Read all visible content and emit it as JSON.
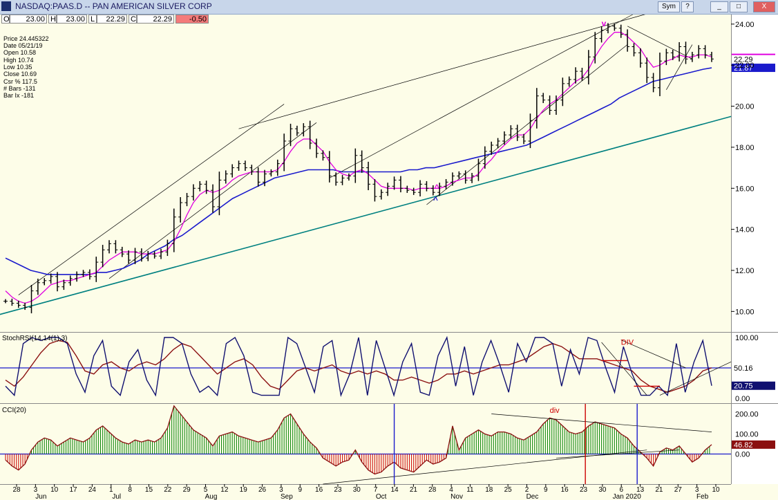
{
  "window": {
    "title": "NASDAQ:PAAS.D -- PAN AMERICAN SILVER CORP",
    "buttons": [
      "Sym",
      "?",
      "_",
      "□",
      "X"
    ]
  },
  "quote_bar": [
    {
      "label": "O",
      "value": "23.00"
    },
    {
      "label": "H",
      "value": "23.00"
    },
    {
      "label": "L",
      "value": "22.29"
    },
    {
      "label": "C",
      "value": "22.29"
    },
    {
      "label": "",
      "value": "-0.50"
    }
  ],
  "info_box": [
    "Price  24.445322",
    "Date  05/21/19",
    "Open  10.58",
    "High  10.74",
    "Low  10.35",
    "Close  10.69",
    "Csr %  117.5",
    "# Bars -131",
    "Bar Ix -181"
  ],
  "colors": {
    "price": "#000000",
    "ma_short": "#e000e0",
    "ma_long": "#1a1acc",
    "trend": "#008080",
    "stoch_k": "#101070",
    "stoch_d": "#8b1010",
    "cci_pos": "#008000",
    "cci_neg": "#cc0000",
    "annotation": "#cc0000"
  },
  "chart_data": [
    {
      "type": "line",
      "panel": "price",
      "title": "NASDAQ:PAAS.D -- PAN AMERICAN SILVER CORP",
      "ylim": [
        9,
        24.5
      ],
      "y_ticks": [
        "10.00",
        "12.00",
        "14.00",
        "16.00",
        "18.00",
        "20.00",
        "22.00",
        "24.00"
      ],
      "x_ticks": [
        "28",
        "3",
        "10",
        "17",
        "24",
        "1",
        "8",
        "15",
        "22",
        "29",
        "5",
        "12",
        "19",
        "26",
        "3",
        "9",
        "16",
        "23",
        "30",
        "7",
        "14",
        "21",
        "28",
        "4",
        "11",
        "18",
        "25",
        "2",
        "9",
        "16",
        "23",
        "30",
        "6",
        "13",
        "21",
        "27",
        "3",
        "10"
      ],
      "months": [
        "Jun",
        "Jul",
        "Aug",
        "Sep",
        "Oct",
        "Nov",
        "Dec",
        "Jan 2020",
        "Feb"
      ],
      "price_labels": [
        "22.29",
        "21.87"
      ],
      "annotations": [
        "v",
        "^",
        "^"
      ],
      "series": [
        {
          "name": "Close",
          "values": [
            10.5,
            10.4,
            10.3,
            10.2,
            11.0,
            11.4,
            11.5,
            11.7,
            11.2,
            11.4,
            11.6,
            11.8,
            11.9,
            11.7,
            12.4,
            13.0,
            13.3,
            13.0,
            12.8,
            12.5,
            12.9,
            12.6,
            12.8,
            12.7,
            12.9,
            13.3,
            14.6,
            15.3,
            15.6,
            16.0,
            16.2,
            15.9,
            15.1,
            16.4,
            16.7,
            17.0,
            17.2,
            17.0,
            16.8,
            16.3,
            16.7,
            16.8,
            17.2,
            18.3,
            18.9,
            18.7,
            19.0,
            18.2,
            17.7,
            17.5,
            16.6,
            16.3,
            16.5,
            16.6,
            17.6,
            17.0,
            16.2,
            15.6,
            15.8,
            16.1,
            16.4,
            16.0,
            15.9,
            15.8,
            16.2,
            16.0,
            15.8,
            16.1,
            16.3,
            16.6,
            16.7,
            16.4,
            16.6,
            17.2,
            17.8,
            18.1,
            18.3,
            18.6,
            18.9,
            18.5,
            18.3,
            19.3,
            20.5,
            20.3,
            19.8,
            20.3,
            21.1,
            21.3,
            21.7,
            21.4,
            22.4,
            23.3,
            23.7,
            23.9,
            23.8,
            23.5,
            22.9,
            22.6,
            22.1,
            21.4,
            20.9,
            22.2,
            22.6,
            22.4,
            22.9,
            22.3,
            22.5,
            22.8,
            22.5,
            22.3
          ]
        },
        {
          "name": "MA short",
          "values": [
            11.0,
            10.7,
            10.5,
            10.4,
            10.5,
            10.7,
            11.0,
            11.3,
            11.4,
            11.5,
            11.5,
            11.6,
            11.7,
            11.8,
            11.9,
            12.2,
            12.5,
            12.7,
            12.9,
            12.9,
            12.9,
            12.8,
            12.8,
            12.8,
            12.9,
            13.0,
            13.4,
            14.0,
            14.7,
            15.3,
            15.7,
            15.9,
            15.8,
            15.9,
            16.1,
            16.4,
            16.6,
            16.7,
            16.8,
            16.8,
            16.8,
            16.8,
            16.9,
            17.3,
            17.8,
            18.2,
            18.4,
            18.4,
            18.1,
            17.8,
            17.3,
            16.9,
            16.7,
            16.6,
            16.8,
            16.9,
            16.7,
            16.4,
            16.1,
            16.0,
            16.0,
            16.0,
            16.0,
            15.9,
            16.0,
            16.0,
            16.0,
            16.0,
            16.1,
            16.3,
            16.4,
            16.5,
            16.5,
            16.7,
            17.1,
            17.4,
            17.8,
            18.1,
            18.4,
            18.6,
            18.6,
            18.9,
            19.4,
            19.8,
            20.1,
            20.3,
            20.6,
            20.9,
            21.2,
            21.4,
            21.8,
            22.4,
            22.9,
            23.3,
            23.6,
            23.6,
            23.4,
            23.1,
            22.8,
            22.3,
            21.9,
            22.0,
            22.2,
            22.3,
            22.5,
            22.4,
            22.4,
            22.5,
            22.5,
            22.4
          ]
        },
        {
          "name": "MA long",
          "values": [
            12.6,
            12.4,
            12.2,
            12.0,
            11.9,
            11.8,
            11.8,
            11.8,
            11.8,
            11.8,
            11.8,
            11.9,
            11.9,
            12.0,
            12.1,
            12.3,
            12.5,
            12.8,
            13.0,
            13.2,
            13.5,
            13.7,
            14.0,
            14.3,
            14.6,
            14.9,
            15.2,
            15.5,
            15.7,
            15.9,
            16.1,
            16.3,
            16.5,
            16.6,
            16.7,
            16.8,
            16.9,
            16.9,
            16.9,
            16.9,
            16.8,
            16.8,
            16.8,
            16.8,
            16.8,
            16.8,
            16.8,
            16.8,
            16.9,
            16.9,
            17.0,
            17.0,
            17.1,
            17.2,
            17.3,
            17.4,
            17.5,
            17.6,
            17.7,
            17.8,
            17.9,
            18.0,
            18.1,
            18.3,
            18.5,
            18.7,
            18.9,
            19.1,
            19.3,
            19.5,
            19.7,
            19.9,
            20.1,
            20.4,
            20.6,
            20.8,
            21.0,
            21.2,
            21.3,
            21.4,
            21.5,
            21.6,
            21.7,
            21.8,
            21.87
          ]
        }
      ]
    },
    {
      "type": "line",
      "panel": "stochrsi",
      "title": "StochRSI(14,14(1),3)",
      "ylim": [
        0,
        100
      ],
      "y_ticks": [
        "0.00",
        "50.00",
        "100.00"
      ],
      "value_labels": [
        "50.16",
        "20.75"
      ],
      "annotations": [
        "DIV"
      ],
      "series": [
        {
          "name": "K",
          "values": [
            20,
            5,
            90,
            100,
            95,
            100,
            100,
            90,
            40,
            10,
            70,
            95,
            20,
            5,
            60,
            80,
            30,
            5,
            100,
            100,
            90,
            40,
            10,
            20,
            5,
            90,
            100,
            70,
            10,
            5,
            5,
            5,
            100,
            90,
            50,
            10,
            85,
            95,
            5,
            40,
            100,
            5,
            95,
            50,
            5,
            60,
            90,
            10,
            5,
            70,
            100,
            20,
            85,
            5,
            60,
            95,
            55,
            10,
            90,
            60,
            100,
            100,
            90,
            20,
            80,
            40,
            100,
            95,
            50,
            10,
            85,
            40,
            5,
            5,
            20,
            5,
            90,
            10,
            60,
            95,
            20.75
          ]
        },
        {
          "name": "D",
          "values": [
            30,
            20,
            35,
            55,
            75,
            90,
            95,
            92,
            70,
            45,
            40,
            55,
            60,
            50,
            45,
            55,
            60,
            55,
            65,
            80,
            90,
            85,
            70,
            55,
            40,
            50,
            60,
            65,
            55,
            35,
            20,
            15,
            30,
            45,
            50,
            45,
            50,
            55,
            45,
            40,
            45,
            40,
            45,
            40,
            30,
            30,
            35,
            30,
            25,
            30,
            40,
            40,
            45,
            40,
            45,
            50,
            55,
            55,
            60,
            65,
            75,
            85,
            90,
            85,
            75,
            65,
            65,
            65,
            60,
            55,
            50,
            45,
            30,
            20,
            15,
            10,
            15,
            20,
            30,
            45,
            50.16
          ]
        }
      ]
    },
    {
      "type": "bar",
      "panel": "cci",
      "title": "CCI(20)",
      "ylim": [
        -150,
        250
      ],
      "y_ticks": [
        "0.00",
        "100.00",
        "200.00"
      ],
      "value_labels": [
        "46.82"
      ],
      "annotations": [
        "div"
      ],
      "series": [
        {
          "name": "CCI",
          "values": [
            -30,
            -60,
            -80,
            -50,
            20,
            60,
            80,
            70,
            40,
            60,
            80,
            70,
            60,
            80,
            120,
            140,
            110,
            80,
            60,
            50,
            70,
            60,
            70,
            60,
            80,
            130,
            240,
            200,
            160,
            120,
            100,
            80,
            40,
            90,
            100,
            110,
            90,
            80,
            70,
            60,
            70,
            80,
            120,
            180,
            200,
            150,
            100,
            60,
            30,
            -20,
            -40,
            -60,
            -40,
            -30,
            20,
            -40,
            -80,
            -100,
            -90,
            -60,
            -40,
            -70,
            -80,
            -90,
            -60,
            -30,
            -50,
            -40,
            -20,
            140,
            20,
            80,
            100,
            120,
            100,
            90,
            110,
            110,
            100,
            80,
            70,
            90,
            110,
            150,
            180,
            170,
            140,
            110,
            100,
            110,
            140,
            160,
            150,
            140,
            130,
            100,
            80,
            40,
            10,
            -20,
            -60,
            10,
            30,
            20,
            40,
            0,
            -40,
            -20,
            20,
            46.82
          ]
        }
      ]
    }
  ]
}
